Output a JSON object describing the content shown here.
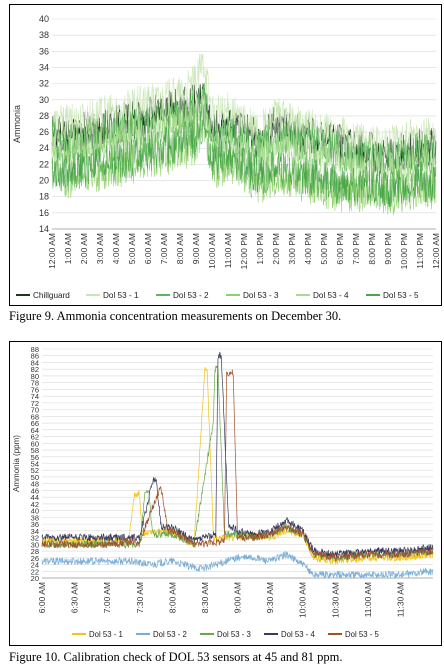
{
  "captions": {
    "fig9": "Figure 9.  Ammonia concentration measurements on December 30.",
    "fig10": "Figure 10.  Calibration check of DOL 53 sensors at 45 and 81 ppm."
  },
  "chart_data": [
    {
      "type": "line",
      "title": "",
      "ylabel": "Ammonia",
      "xlabel": "",
      "ylim": [
        14,
        40
      ],
      "yticks": [
        "14",
        "16",
        "18",
        "20",
        "22",
        "24",
        "26",
        "28",
        "30",
        "32",
        "34",
        "36",
        "38",
        "40"
      ],
      "x_tick_labels": [
        "12:00 AM",
        "1:00 AM",
        "2:00 AM",
        "3:00 AM",
        "4:00 AM",
        "5:00 AM",
        "6:00 AM",
        "7:00 AM",
        "8:00 AM",
        "9:00 AM",
        "10:00 AM",
        "11:00 AM",
        "12:00 PM",
        "1:00 PM",
        "2:00 PM",
        "3:00 PM",
        "4:00 PM",
        "5:00 PM",
        "6:00 PM",
        "7:00 PM",
        "8:00 PM",
        "9:00 PM",
        "10:00 PM",
        "11:00 PM",
        "12:00 AM"
      ],
      "x_hours": [
        0,
        24
      ],
      "grid": true,
      "legend_position": "bottom",
      "series": [
        {
          "name": "Chillguard",
          "color": "#1b3a1b",
          "x": [
            0,
            1,
            2,
            3,
            4,
            5,
            6,
            7,
            8,
            9,
            9.5,
            10,
            11,
            12,
            13,
            14,
            15,
            16,
            17,
            18,
            19,
            20,
            21,
            22,
            23,
            24
          ],
          "values": [
            26,
            25.5,
            26,
            26.5,
            27,
            27.5,
            28,
            28.5,
            29,
            29.5,
            31,
            26,
            27,
            26,
            25,
            27,
            26,
            25.5,
            25,
            24.5,
            24,
            23.5,
            23,
            23.5,
            24,
            24
          ]
        },
        {
          "name": "Dol 53 - 1",
          "color": "#c9e6b5",
          "x": [
            0,
            1,
            2,
            3,
            4,
            5,
            6,
            7,
            8,
            9,
            9.5,
            10,
            11,
            12,
            13,
            14,
            15,
            16,
            17,
            18,
            19,
            20,
            21,
            22,
            23,
            24
          ],
          "values": [
            27,
            27,
            27.5,
            28,
            28.5,
            29,
            29.5,
            30,
            30.5,
            32,
            35,
            28,
            28.5,
            27,
            26,
            28,
            27,
            26.5,
            26,
            25.5,
            25,
            25,
            24.5,
            25,
            25.5,
            25
          ]
        },
        {
          "name": "Dol 53 - 2",
          "color": "#5cb85c",
          "x": [
            0,
            1,
            2,
            3,
            4,
            5,
            6,
            7,
            8,
            9,
            9.5,
            10,
            11,
            12,
            13,
            14,
            15,
            16,
            17,
            18,
            19,
            20,
            21,
            22,
            23,
            24
          ],
          "values": [
            25,
            24.5,
            25,
            25.5,
            26,
            26.5,
            27,
            27.5,
            28,
            29,
            30,
            25,
            25.5,
            24.5,
            24,
            25.5,
            25,
            24.5,
            24,
            23.5,
            23,
            23,
            22.5,
            23,
            23.5,
            23
          ]
        },
        {
          "name": "Dol 53 - 3",
          "color": "#8fd16a",
          "x": [
            0,
            1,
            2,
            3,
            4,
            5,
            6,
            7,
            8,
            9,
            9.5,
            10,
            11,
            12,
            13,
            14,
            15,
            16,
            17,
            18,
            19,
            20,
            21,
            22,
            23,
            24
          ],
          "values": [
            20.5,
            20,
            20.5,
            21,
            21.5,
            22,
            22.5,
            23,
            23.5,
            24.5,
            26,
            21,
            22,
            21,
            19.5,
            20.5,
            20,
            19.5,
            19,
            18.5,
            18.5,
            18.5,
            18,
            18.5,
            19,
            18.5
          ]
        },
        {
          "name": "Dol 53 - 4",
          "color": "#a9dc8e",
          "x": [
            0,
            1,
            2,
            3,
            4,
            5,
            6,
            7,
            8,
            9,
            9.5,
            10,
            11,
            12,
            13,
            14,
            15,
            16,
            17,
            18,
            19,
            20,
            21,
            22,
            23,
            24
          ],
          "values": [
            24,
            23.5,
            24,
            24.5,
            25,
            25.5,
            26,
            26.5,
            27,
            28,
            29,
            24,
            24.5,
            23.5,
            23,
            24,
            23.5,
            23,
            22.5,
            22,
            21.5,
            21.5,
            21,
            21.5,
            22,
            21.5
          ]
        },
        {
          "name": "Dol 53 - 5",
          "color": "#4aa64a",
          "x": [
            0,
            1,
            2,
            3,
            4,
            5,
            6,
            7,
            8,
            9,
            9.5,
            10,
            11,
            12,
            13,
            14,
            15,
            16,
            17,
            18,
            19,
            20,
            21,
            22,
            23,
            24
          ],
          "values": [
            21.5,
            21,
            21.5,
            22,
            22.5,
            23,
            23.5,
            24,
            24.5,
            25.5,
            27,
            22,
            23,
            22,
            20.5,
            21.5,
            21,
            20.5,
            20,
            19.5,
            19.5,
            19.5,
            19,
            19.5,
            20,
            19.5
          ]
        }
      ]
    },
    {
      "type": "line",
      "title": "",
      "ylabel": "Ammonia (ppm)",
      "xlabel": "",
      "ylim": [
        20,
        88
      ],
      "ytick_step": 2,
      "x_tick_labels": [
        "6:00 AM",
        "6:30 AM",
        "7:00 AM",
        "7:30 AM",
        "8:00 AM",
        "8:30 AM",
        "9:00 AM",
        "9:30 AM",
        "10:00 AM",
        "10:30 AM",
        "11:00 AM",
        "11:30 AM"
      ],
      "x_minutes": [
        360,
        720
      ],
      "grid": true,
      "legend_position": "bottom",
      "series": [
        {
          "name": "Dol 53 - 1",
          "color": "#f0c419",
          "x": [
            360,
            390,
            420,
            440,
            445,
            450,
            452,
            470,
            480,
            500,
            510,
            512,
            518,
            520,
            525,
            540,
            555,
            570,
            585,
            600,
            610,
            630,
            660,
            690,
            720
          ],
          "values": [
            31,
            31,
            31,
            31,
            45,
            45,
            33,
            34,
            34,
            30,
            82,
            82,
            31,
            32,
            32,
            32,
            33,
            32,
            34,
            33,
            26,
            25,
            26,
            26,
            27
          ]
        },
        {
          "name": "Dol 53 - 2",
          "color": "#7aaed6",
          "x": [
            360,
            390,
            420,
            440,
            460,
            480,
            500,
            510,
            540,
            555,
            570,
            585,
            600,
            610,
            630,
            660,
            690,
            720
          ],
          "values": [
            25,
            25,
            25,
            25,
            24,
            25,
            23,
            23,
            26,
            26,
            25,
            27,
            24,
            21,
            21,
            21,
            21,
            22
          ]
        },
        {
          "name": "Dol 53 - 3",
          "color": "#6aa84f",
          "x": [
            360,
            390,
            420,
            450,
            455,
            458,
            462,
            470,
            480,
            500,
            518,
            519,
            522,
            528,
            530,
            540,
            555,
            570,
            585,
            600,
            610,
            630,
            660,
            690,
            720
          ],
          "values": [
            30,
            30,
            30,
            30,
            46,
            46,
            33,
            33,
            33,
            30,
            67,
            82,
            82,
            33,
            33,
            33,
            32,
            33,
            35,
            33,
            27,
            26,
            27,
            27,
            28
          ]
        },
        {
          "name": "Dol 53 - 4",
          "color": "#3a3a5c",
          "x": [
            360,
            390,
            420,
            450,
            462,
            465,
            470,
            480,
            500,
            520,
            522,
            525,
            532,
            535,
            540,
            555,
            570,
            585,
            600,
            610,
            630,
            660,
            690,
            720
          ],
          "values": [
            32,
            32,
            32,
            32,
            49,
            49,
            35,
            35,
            31,
            33,
            86,
            86,
            35,
            35,
            34,
            33,
            34,
            37,
            34,
            28,
            27,
            28,
            28,
            29
          ]
        },
        {
          "name": "Dol 53 - 5",
          "color": "#a0522d",
          "x": [
            360,
            390,
            420,
            450,
            468,
            470,
            476,
            480,
            500,
            528,
            530,
            536,
            540,
            555,
            570,
            585,
            600,
            610,
            630,
            660,
            690,
            720
          ],
          "values": [
            30,
            30,
            30,
            31,
            46,
            46,
            34,
            34,
            30,
            31,
            81,
            81,
            32,
            32,
            33,
            35,
            33,
            27,
            26,
            27,
            27,
            28
          ]
        }
      ]
    }
  ]
}
